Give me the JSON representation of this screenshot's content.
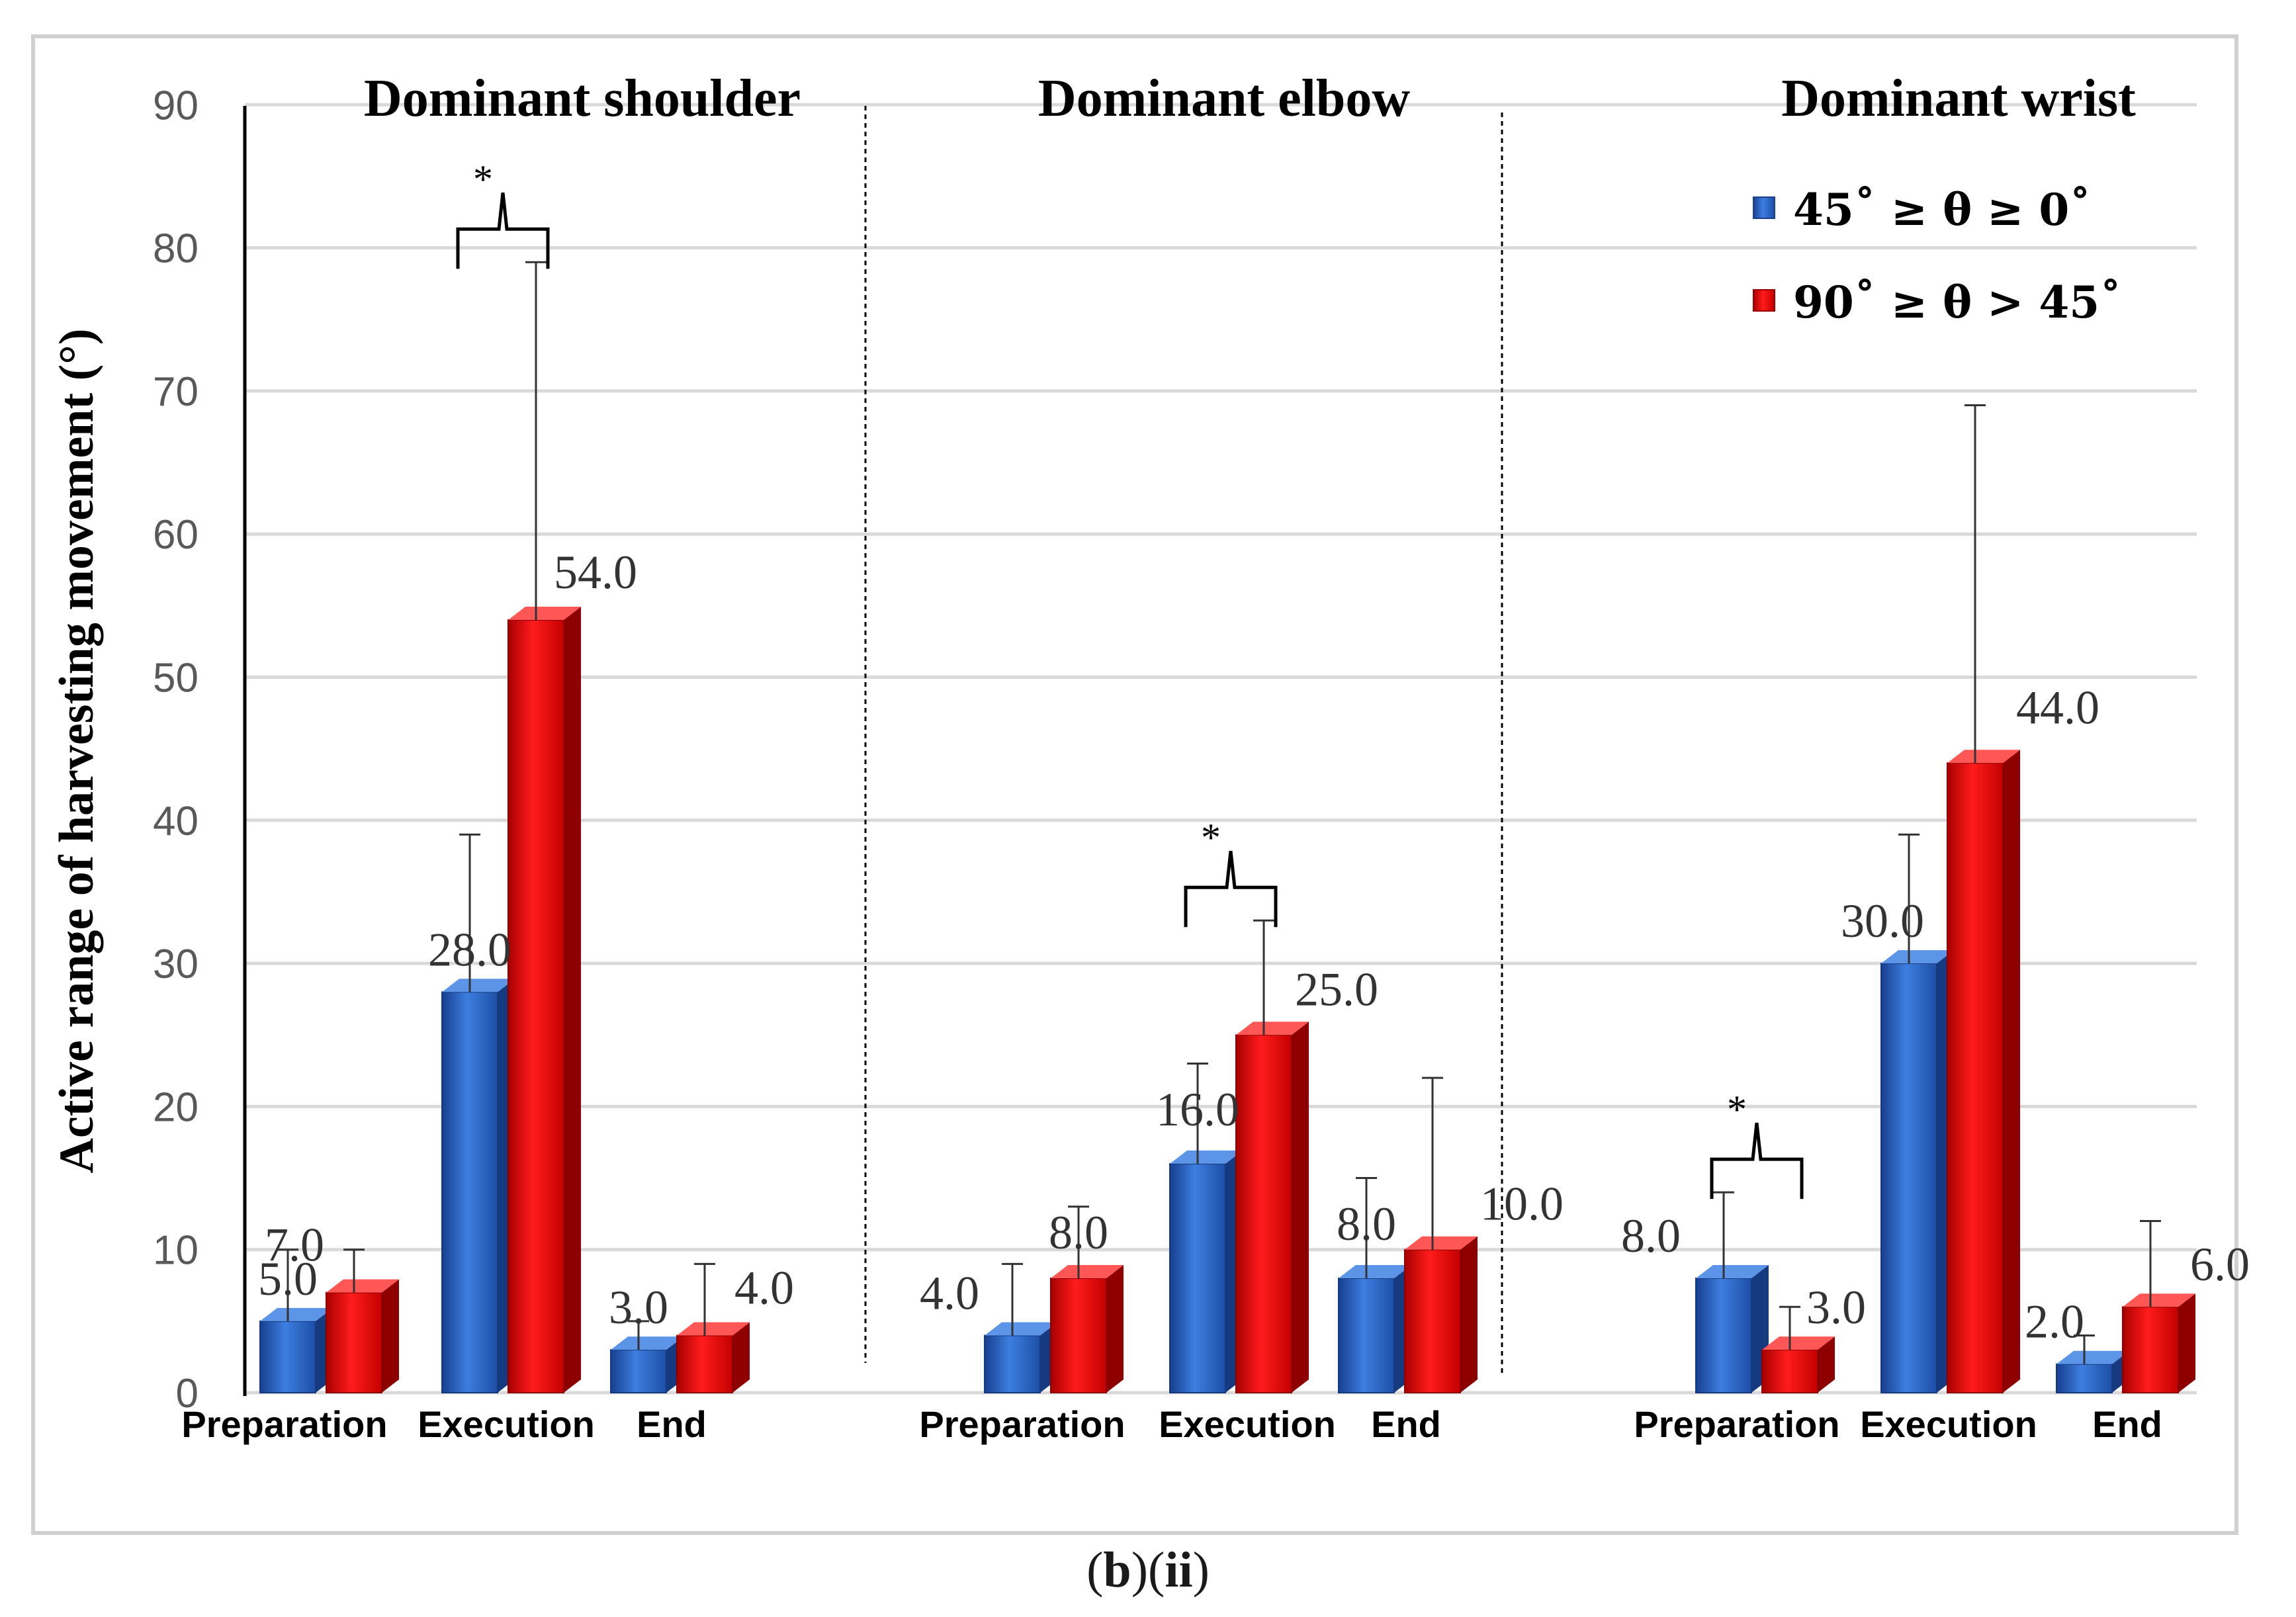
{
  "chart_data": {
    "type": "bar",
    "ylabel": "Active range of harvesting movement (°)",
    "ylim": [
      0,
      90
    ],
    "yticks": [
      0,
      10,
      20,
      30,
      40,
      50,
      60,
      70,
      80,
      90
    ],
    "grid": true,
    "legend_position": "top-right",
    "legend_labels": [
      "45˚ ≥ θ ≥ 0˚",
      "90˚ ≥ θ > 45˚"
    ],
    "colors": [
      "#2f6bd0",
      "#e21a1a"
    ],
    "value_labels": [
      "5.0",
      "7.0",
      "28.0",
      "54.0",
      "3.0",
      "4.0",
      "4.0",
      "8.0",
      "16.0",
      "25.0",
      "8.0",
      "10.0",
      "8.0",
      "3.0",
      "30.0",
      "44.0",
      "2.0",
      "6.0"
    ],
    "significance_marker": "*",
    "panels": [
      {
        "title": "Dominant shoulder",
        "categories": [
          "Preparation",
          "Execution",
          "End"
        ],
        "series": [
          {
            "values": [
              5.0,
              28.0,
              3.0
            ],
            "error": [
              5.0,
              11.0,
              2.0
            ]
          },
          {
            "values": [
              7.0,
              54.0,
              4.0
            ],
            "error": [
              3.0,
              25.0,
              5.0
            ]
          }
        ],
        "significant": [
          "Execution"
        ]
      },
      {
        "title": "Dominant elbow",
        "categories": [
          "Preparation",
          "Execution",
          "End"
        ],
        "series": [
          {
            "values": [
              4.0,
              16.0,
              8.0
            ],
            "error": [
              5.0,
              7.0,
              7.0
            ]
          },
          {
            "values": [
              8.0,
              25.0,
              10.0
            ],
            "error": [
              5.0,
              8.0,
              12.0
            ]
          }
        ],
        "significant": [
          "Execution"
        ]
      },
      {
        "title": "Dominant wrist",
        "categories": [
          "Preparation",
          "Execution",
          "End"
        ],
        "series": [
          {
            "values": [
              8.0,
              30.0,
              2.0
            ],
            "error": [
              6.0,
              9.0,
              2.0
            ]
          },
          {
            "values": [
              3.0,
              44.0,
              6.0
            ],
            "error": [
              3.0,
              25.0,
              6.0
            ]
          }
        ],
        "significant": [
          "Preparation"
        ]
      }
    ]
  },
  "caption": {
    "part1": "b",
    "part2": "ii"
  }
}
